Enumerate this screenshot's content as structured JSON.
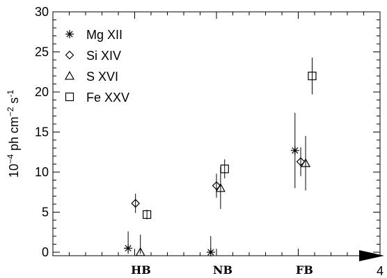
{
  "chart_data": {
    "type": "scatter",
    "ylabel_parts": [
      "10",
      "−4",
      " ph cm",
      "−2",
      " s",
      "-1"
    ],
    "ylim": [
      0,
      30
    ],
    "yticks": [
      "0",
      "5",
      "10",
      "15",
      "20",
      "25",
      "30"
    ],
    "xlim": [
      0,
      4
    ],
    "x_categories": [
      {
        "label": "HB",
        "x": 1.0
      },
      {
        "label": "NB",
        "x": 2.0
      },
      {
        "label": "FB",
        "x": 3.0
      }
    ],
    "x_end_label": "4",
    "legend_position": "top-left",
    "series": [
      {
        "name": "Mg XII",
        "marker": "asterisk",
        "points": [
          {
            "x": 0.92,
            "y": 0.5,
            "err": 2.1
          },
          {
            "x": 1.93,
            "y": 0.0,
            "err": 2.0
          },
          {
            "x": 2.96,
            "y": 12.7,
            "err": 4.7
          }
        ]
      },
      {
        "name": "Si XIV",
        "marker": "diamond",
        "points": [
          {
            "x": 1.01,
            "y": 6.1,
            "err": 1.2
          },
          {
            "x": 2.0,
            "y": 8.3,
            "err": 1.5
          },
          {
            "x": 3.03,
            "y": 11.3,
            "err": 1.8
          }
        ]
      },
      {
        "name": "S XVI",
        "marker": "triangle",
        "points": [
          {
            "x": 1.07,
            "y": 0.0,
            "err": 2.2
          },
          {
            "x": 2.05,
            "y": 8.0,
            "err": 2.6
          },
          {
            "x": 3.09,
            "y": 11.1,
            "err": 3.4
          }
        ]
      },
      {
        "name": "Fe XXV",
        "marker": "square",
        "points": [
          {
            "x": 1.15,
            "y": 4.7,
            "err": 0.6
          },
          {
            "x": 2.1,
            "y": 10.4,
            "err": 1.2
          },
          {
            "x": 3.17,
            "y": 22.0,
            "err": 2.3
          }
        ]
      }
    ]
  }
}
